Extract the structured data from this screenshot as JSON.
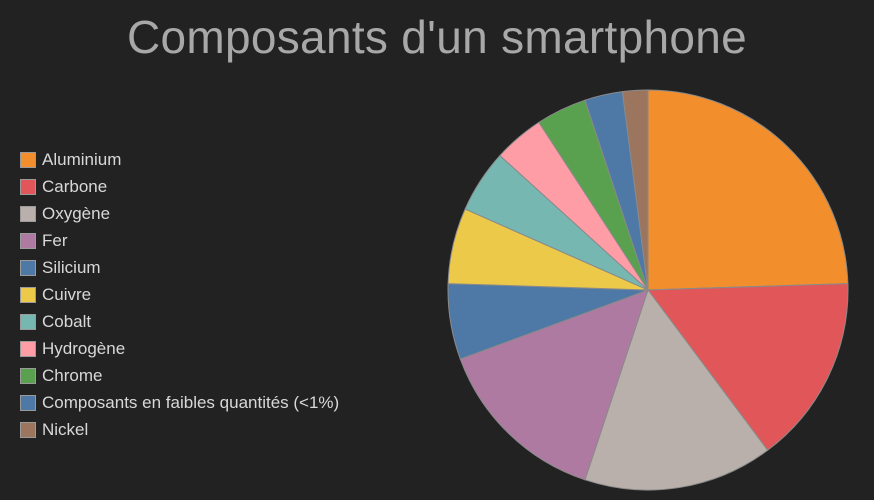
{
  "chart_data": {
    "type": "pie",
    "title": "Composants d'un smartphone",
    "legend_position": "left",
    "start_angle_deg": 0,
    "direction": "clockwise",
    "slices": [
      {
        "label": "Aluminium",
        "value": 24,
        "color": "#f28e2c"
      },
      {
        "label": "Carbone",
        "value": 15,
        "color": "#e15759"
      },
      {
        "label": "Oxygène",
        "value": 15,
        "color": "#bab0ab"
      },
      {
        "label": "Fer",
        "value": 14,
        "color": "#af7aa1"
      },
      {
        "label": "Silicium",
        "value": 6,
        "color": "#4e79a7"
      },
      {
        "label": "Cuivre",
        "value": 6,
        "color": "#edc949"
      },
      {
        "label": "Cobalt",
        "value": 5,
        "color": "#76b7b2"
      },
      {
        "label": "Hydrogène",
        "value": 4,
        "color": "#ff9da7"
      },
      {
        "label": "Chrome",
        "value": 4,
        "color": "#59a14f"
      },
      {
        "label": "Composants en faibles quantités (<1%)",
        "value": 3,
        "color": "#4e79a7"
      },
      {
        "label": "Nickel",
        "value": 2,
        "color": "#9c755f"
      }
    ]
  }
}
